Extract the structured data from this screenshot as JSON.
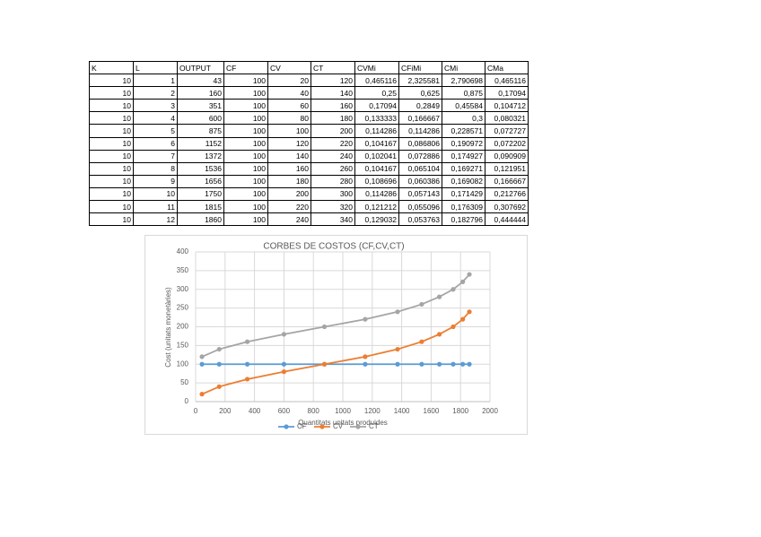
{
  "table": {
    "header": [
      "K",
      "L",
      "OUTPUT",
      "CF",
      "CV",
      "CT",
      "CVMi",
      "CFiMi",
      "CMi",
      "CMa"
    ],
    "rows": [
      [
        "10",
        "1",
        "43",
        "100",
        "20",
        "120",
        "0,465116",
        "2,325581",
        "2,790698",
        "0,465116"
      ],
      [
        "10",
        "2",
        "160",
        "100",
        "40",
        "140",
        "0,25",
        "0,625",
        "0,875",
        "0,17094"
      ],
      [
        "10",
        "3",
        "351",
        "100",
        "60",
        "160",
        "0,17094",
        "0,2849",
        "0,45584",
        "0,104712"
      ],
      [
        "10",
        "4",
        "600",
        "100",
        "80",
        "180",
        "0,133333",
        "0,166667",
        "0,3",
        "0,080321"
      ],
      [
        "10",
        "5",
        "875",
        "100",
        "100",
        "200",
        "0,114286",
        "0,114286",
        "0,228571",
        "0,072727"
      ],
      [
        "10",
        "6",
        "1152",
        "100",
        "120",
        "220",
        "0,104167",
        "0,086806",
        "0,190972",
        "0,072202"
      ],
      [
        "10",
        "7",
        "1372",
        "100",
        "140",
        "240",
        "0,102041",
        "0,072886",
        "0,174927",
        "0,090909"
      ],
      [
        "10",
        "8",
        "1536",
        "100",
        "160",
        "260",
        "0,104167",
        "0,065104",
        "0,169271",
        "0,121951"
      ],
      [
        "10",
        "9",
        "1656",
        "100",
        "180",
        "280",
        "0,108696",
        "0,060386",
        "0,169082",
        "0,166667"
      ],
      [
        "10",
        "10",
        "1750",
        "100",
        "200",
        "300",
        "0,114286",
        "0,057143",
        "0,171429",
        "0,212766"
      ],
      [
        "10",
        "11",
        "1815",
        "100",
        "220",
        "320",
        "0,121212",
        "0,055096",
        "0,176309",
        "0,307692"
      ],
      [
        "10",
        "12",
        "1860",
        "100",
        "240",
        "340",
        "0,129032",
        "0,053763",
        "0,182796",
        "0,444444"
      ]
    ]
  },
  "chart_data": {
    "type": "line",
    "title": "CORBES DE COSTOS (CF,CV,CT)",
    "x_label": "Quantitats unitats produides",
    "y_label": "Cost (unitats monetàries)",
    "x": [
      43,
      160,
      351,
      600,
      875,
      1152,
      1372,
      1536,
      1656,
      1750,
      1815,
      1860
    ],
    "series": [
      {
        "name": "CF",
        "color": "#5b9bd5",
        "values": [
          100,
          100,
          100,
          100,
          100,
          100,
          100,
          100,
          100,
          100,
          100,
          100
        ]
      },
      {
        "name": "CV",
        "color": "#ed7d31",
        "values": [
          20,
          40,
          60,
          80,
          100,
          120,
          140,
          160,
          180,
          200,
          220,
          240
        ]
      },
      {
        "name": "CT",
        "color": "#a5a5a5",
        "values": [
          120,
          140,
          160,
          180,
          200,
          220,
          240,
          260,
          280,
          300,
          320,
          340
        ]
      }
    ],
    "xlim": [
      0,
      2000
    ],
    "xticks": [
      0,
      200,
      400,
      600,
      800,
      1000,
      1200,
      1400,
      1600,
      1800,
      2000
    ],
    "ylim": [
      0,
      400
    ],
    "yticks": [
      0,
      50,
      100,
      150,
      200,
      250,
      300,
      350,
      400
    ],
    "grid": true,
    "legend": "bottom"
  }
}
